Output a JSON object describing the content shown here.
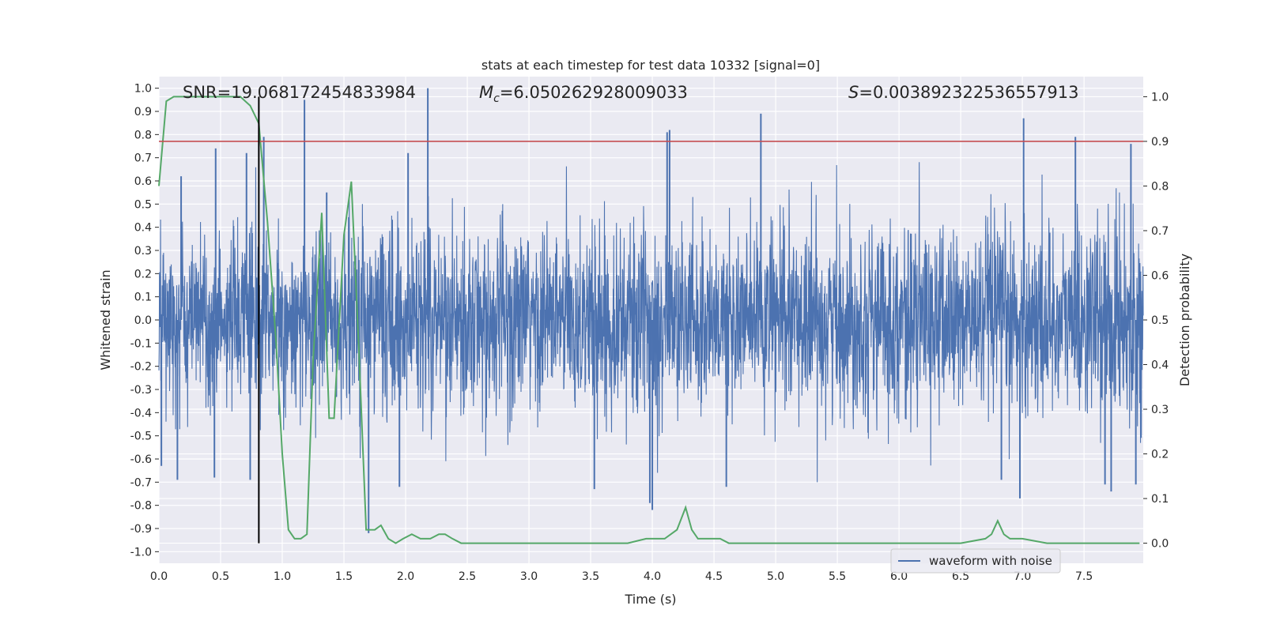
{
  "chart_data": {
    "type": "line",
    "title": "stats at each timestep for test data 10332 [signal=0]",
    "xlabel": "Time (s)",
    "ylabel_left": "Whitened strain",
    "ylabel_right": "Detection probability",
    "xlim": [
      0.0,
      7.98
    ],
    "ylim_left": [
      -1.05,
      1.05
    ],
    "ylim_right": [
      -0.045,
      1.045
    ],
    "x_ticks": [
      "0.0",
      "0.5",
      "1.0",
      "1.5",
      "2.0",
      "2.5",
      "3.0",
      "3.5",
      "4.0",
      "4.5",
      "5.0",
      "5.5",
      "6.0",
      "6.5",
      "7.0",
      "7.5"
    ],
    "y_ticks_left": [
      "-1.0",
      "-0.9",
      "-0.8",
      "-0.7",
      "-0.6",
      "-0.5",
      "-0.4",
      "-0.3",
      "-0.2",
      "-0.1",
      "0.0",
      "0.1",
      "0.2",
      "0.3",
      "0.4",
      "0.5",
      "0.6",
      "0.7",
      "0.8",
      "0.9",
      "1.0"
    ],
    "y_ticks_right": [
      "0.0",
      "0.1",
      "0.2",
      "0.3",
      "0.4",
      "0.5",
      "0.6",
      "0.7",
      "0.8",
      "0.9",
      "1.0"
    ],
    "grid": true,
    "annotations": {
      "snr_label": "SNR=19.068172454833984",
      "mc_symbol": "M",
      "mc_subscript": "c",
      "mc_value": "=6.050262928009033",
      "s_symbol": "S",
      "s_value": "=0.003892322536557913"
    },
    "threshold_right": 0.9,
    "vertical_marker_x": 0.81,
    "legend": {
      "placement": "lower-right",
      "entries": [
        "waveform with noise"
      ]
    },
    "colors": {
      "waveform": "#4c72b0",
      "probability": "#55a868",
      "threshold": "#c44e52",
      "marker": "#000000",
      "axes_bg": "#eaeaf2",
      "grid": "#ffffff"
    },
    "series": [
      {
        "name": "waveform with noise",
        "axis": "left",
        "spikes": [
          {
            "x": 0.02,
            "y": -0.63
          },
          {
            "x": 0.15,
            "y": -0.69
          },
          {
            "x": 0.18,
            "y": 0.62
          },
          {
            "x": 0.45,
            "y": -0.68
          },
          {
            "x": 0.46,
            "y": 0.74
          },
          {
            "x": 0.71,
            "y": 0.72
          },
          {
            "x": 0.74,
            "y": -0.69
          },
          {
            "x": 0.85,
            "y": 0.79
          },
          {
            "x": 1.18,
            "y": 0.95
          },
          {
            "x": 1.36,
            "y": 0.55
          },
          {
            "x": 1.7,
            "y": -0.92
          },
          {
            "x": 1.95,
            "y": -0.72
          },
          {
            "x": 2.02,
            "y": 0.72
          },
          {
            "x": 2.18,
            "y": 1.0
          },
          {
            "x": 3.53,
            "y": -0.73
          },
          {
            "x": 3.98,
            "y": -0.79
          },
          {
            "x": 4.0,
            "y": -0.82
          },
          {
            "x": 4.12,
            "y": 0.81
          },
          {
            "x": 4.14,
            "y": 0.82
          },
          {
            "x": 4.6,
            "y": -0.72
          },
          {
            "x": 4.88,
            "y": 0.89
          },
          {
            "x": 6.83,
            "y": -0.69
          },
          {
            "x": 6.98,
            "y": -0.77
          },
          {
            "x": 7.01,
            "y": 0.87
          },
          {
            "x": 7.43,
            "y": 0.79
          },
          {
            "x": 7.67,
            "y": -0.71
          },
          {
            "x": 7.72,
            "y": -0.74
          },
          {
            "x": 7.88,
            "y": 0.76
          },
          {
            "x": 7.92,
            "y": -0.71
          }
        ]
      },
      {
        "name": "",
        "axis": "right",
        "x": [
          0.0,
          0.06,
          0.12,
          0.2,
          0.3,
          0.4,
          0.5,
          0.6,
          0.66,
          0.74,
          0.81,
          0.88,
          0.95,
          1.0,
          1.05,
          1.1,
          1.15,
          1.2,
          1.25,
          1.32,
          1.38,
          1.42,
          1.5,
          1.56,
          1.62,
          1.68,
          1.75,
          1.8,
          1.86,
          1.92,
          1.98,
          2.05,
          2.12,
          2.2,
          2.27,
          2.32,
          2.38,
          2.45,
          2.55,
          2.7,
          2.85,
          3.0,
          3.15,
          3.3,
          3.45,
          3.6,
          3.8,
          3.95,
          4.1,
          4.2,
          4.27,
          4.32,
          4.37,
          4.45,
          4.55,
          4.62,
          4.7,
          4.85,
          5.0,
          5.2,
          5.5,
          6.0,
          6.2,
          6.5,
          6.7,
          6.75,
          6.8,
          6.85,
          6.9,
          7.0,
          7.2,
          7.5,
          7.8,
          7.95
        ],
        "y": [
          0.8,
          0.99,
          1.0,
          1.0,
          1.0,
          1.0,
          1.0,
          1.0,
          1.0,
          0.98,
          0.94,
          0.72,
          0.45,
          0.2,
          0.03,
          0.01,
          0.01,
          0.02,
          0.41,
          0.74,
          0.28,
          0.28,
          0.69,
          0.81,
          0.44,
          0.03,
          0.03,
          0.04,
          0.01,
          0.0,
          0.01,
          0.02,
          0.01,
          0.01,
          0.02,
          0.02,
          0.01,
          0.0,
          0.0,
          0.0,
          0.0,
          0.0,
          0.0,
          0.0,
          0.0,
          0.0,
          0.0,
          0.01,
          0.01,
          0.03,
          0.08,
          0.03,
          0.01,
          0.01,
          0.01,
          0.0,
          0.0,
          0.0,
          0.0,
          0.0,
          0.0,
          0.0,
          0.0,
          0.0,
          0.01,
          0.02,
          0.05,
          0.02,
          0.01,
          0.01,
          0.0,
          0.0,
          0.0,
          0.0
        ]
      }
    ]
  }
}
